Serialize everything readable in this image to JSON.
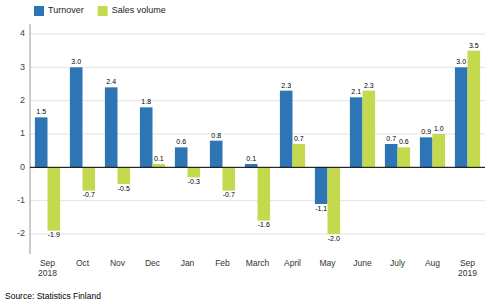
{
  "chart_data": {
    "type": "bar",
    "categories": [
      "Sep\n2018",
      "Oct",
      "Nov",
      "Dec",
      "Jan",
      "Feb",
      "March",
      "April",
      "May",
      "June",
      "July",
      "Aug",
      "Sep\n2019"
    ],
    "series": [
      {
        "name": "Turnover",
        "color": "#2E75B6",
        "values": [
          1.5,
          3.0,
          2.4,
          1.8,
          0.6,
          0.8,
          0.1,
          2.3,
          -1.1,
          2.1,
          0.7,
          0.9,
          3.0
        ],
        "value_labels": [
          "1.5",
          "3.0",
          "2.4",
          "1.8",
          "0.6",
          "0.8",
          "0.1",
          "2.3",
          "-1.1",
          "2.1",
          "0.7",
          "0.9",
          "3.0"
        ]
      },
      {
        "name": "Sales volume",
        "color": "#C5D94E",
        "values": [
          -1.9,
          -0.7,
          -0.5,
          0.1,
          -0.3,
          -0.7,
          -1.6,
          0.7,
          -2.0,
          2.3,
          0.6,
          1.0,
          3.5
        ],
        "value_labels": [
          "-1.9",
          "-0.7",
          "-0.5",
          "0.1",
          "-0.3",
          "-0.7",
          "-1.6",
          "0.7",
          "-2.0",
          "2.3",
          "0.6",
          "1.0",
          "3.5"
        ]
      }
    ],
    "ylim": [
      -2.6,
      4.3
    ],
    "yticks": [
      -2,
      -1,
      0,
      1,
      2,
      3,
      4
    ],
    "grid": true,
    "legend": "upper-left",
    "data_labels": true,
    "annotations": [
      "Source: Statistics Finland"
    ]
  }
}
